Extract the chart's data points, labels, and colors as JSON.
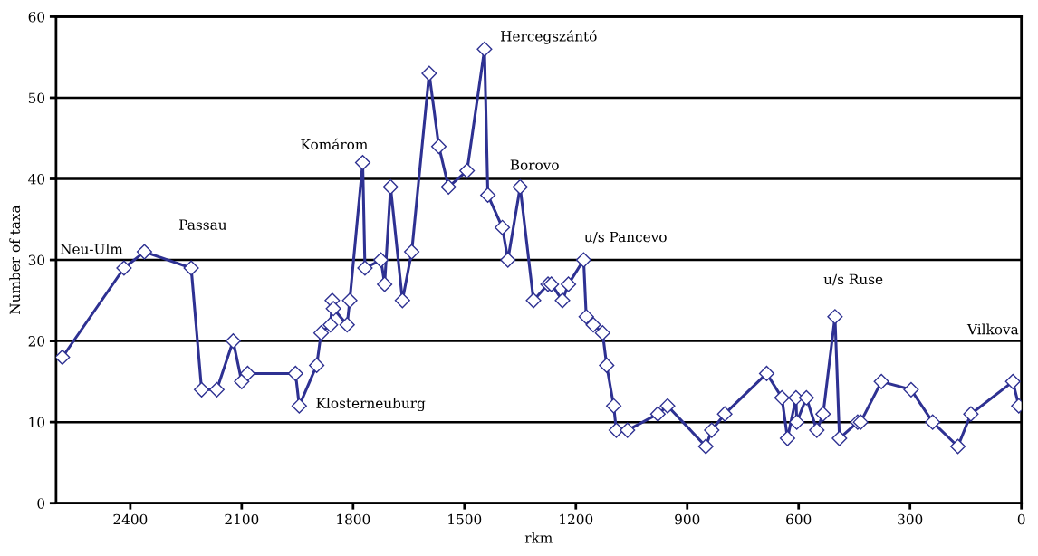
{
  "chart_data": {
    "type": "line",
    "xlabel": "rkm",
    "ylabel": "Number of taxa",
    "x": [
      2583,
      2417,
      2362,
      2236,
      2208,
      2167,
      2123,
      2100,
      2084,
      1955,
      1945,
      1898,
      1886,
      1861,
      1856,
      1853,
      1816,
      1809,
      1774,
      1768,
      1725,
      1715,
      1699,
      1667,
      1642,
      1595,
      1569,
      1543,
      1493,
      1446,
      1437,
      1398,
      1383,
      1350,
      1314,
      1275,
      1266,
      1236,
      1220,
      1179,
      1172,
      1153,
      1128,
      1117,
      1098,
      1091,
      1061,
      979,
      953,
      850,
      834,
      799,
      686,
      645,
      630,
      607,
      605,
      579,
      551,
      534,
      502,
      490,
      441,
      433,
      377,
      297,
      239,
      171,
      136,
      23,
      7
    ],
    "series": [
      {
        "color": "#2e3192",
        "values": [
          18,
          29,
          31,
          29,
          14,
          14,
          20,
          15,
          16,
          16,
          12,
          17,
          21,
          22,
          25,
          24,
          22,
          25,
          42,
          29,
          30,
          27,
          39,
          25,
          31,
          53,
          44,
          39,
          41,
          56,
          38,
          34,
          30,
          39,
          25,
          27,
          27,
          25,
          27,
          30,
          23,
          22,
          21,
          17,
          12,
          9,
          9,
          11,
          12,
          7,
          9,
          11,
          16,
          13,
          8,
          13,
          10,
          13,
          9,
          11,
          23,
          8,
          10,
          10,
          15,
          14,
          10,
          7,
          11,
          15,
          12
        ]
      }
    ],
    "xlim": [
      2600,
      0
    ],
    "xticks": [
      2400,
      2100,
      1800,
      1500,
      1200,
      900,
      600,
      300,
      0
    ],
    "ylim": [
      0,
      60
    ],
    "yticks": [
      0,
      10,
      20,
      30,
      40,
      50,
      60
    ],
    "grid": "y",
    "legend": false,
    "marker": "diamond",
    "line_style": "solid",
    "annotations": [
      "Neu-Ulm",
      "Passau",
      "Komárom",
      "Klosterneuburg",
      "Hercegszántó",
      "Borovo",
      "u/s Pancevo",
      "u/s Ruse",
      "Vilkova"
    ]
  }
}
